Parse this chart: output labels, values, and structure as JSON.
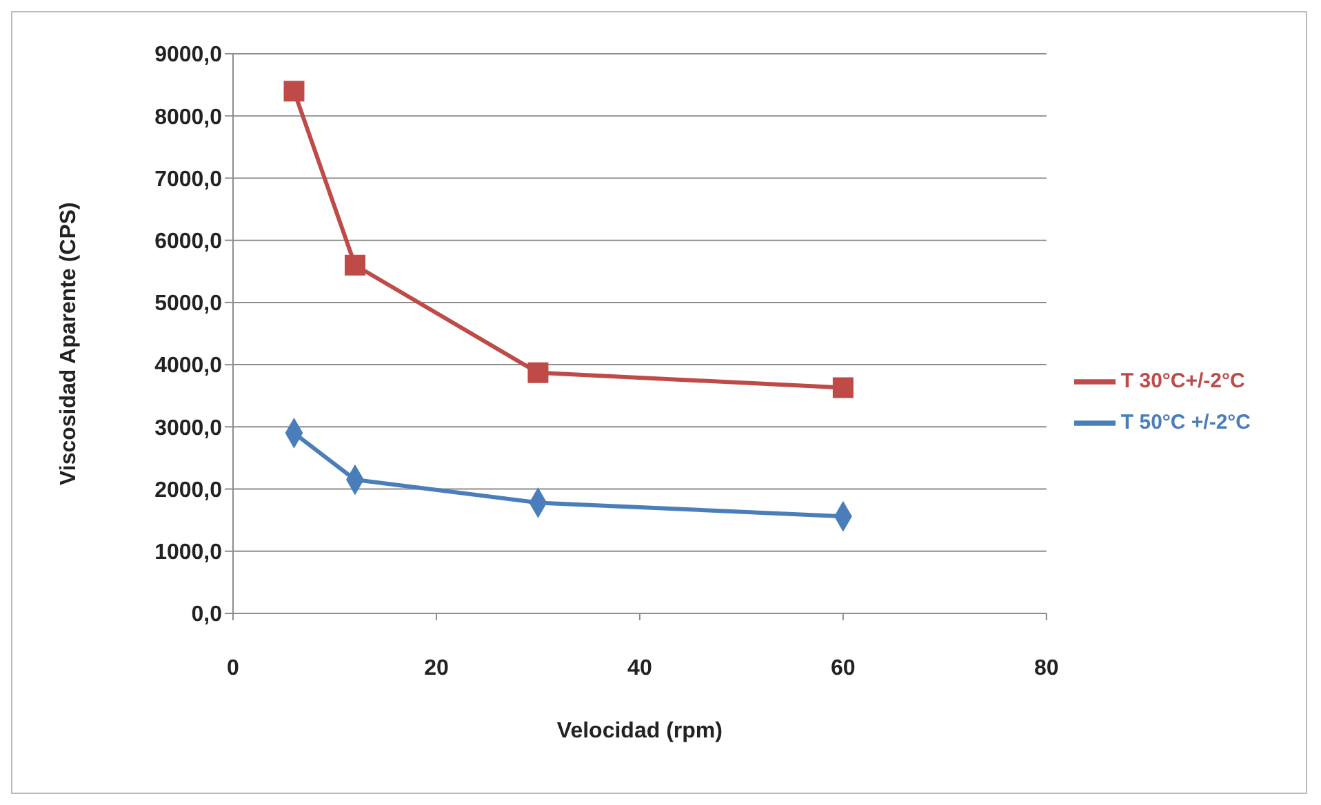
{
  "chart_data": {
    "type": "line",
    "xlabel": "Velocidad (rpm)",
    "ylabel": "Viscosidad Aparente (CPS)",
    "series": [
      {
        "name": "T 50°C +/-2°C",
        "color": "#4a7ebb",
        "x": [
          6,
          12,
          30,
          60
        ],
        "values": [
          2900,
          2150,
          1780,
          1560
        ],
        "marker": "diamond"
      },
      {
        "name": "T 30°C+/-2°C",
        "color": "#be4b48",
        "x": [
          6,
          12,
          30,
          60
        ],
        "values": [
          8400,
          5600,
          3870,
          3630
        ],
        "marker": "square"
      }
    ],
    "xlim": [
      0,
      80
    ],
    "xticks": [
      0,
      20,
      40,
      60,
      80
    ],
    "ylim": [
      0,
      9000
    ],
    "yticks": [
      {
        "value": 0,
        "label": "0,0"
      },
      {
        "value": 1000,
        "label": "1000,0"
      },
      {
        "value": 2000,
        "label": "2000,0"
      },
      {
        "value": 3000,
        "label": "3000,0"
      },
      {
        "value": 4000,
        "label": "4000,0"
      },
      {
        "value": 5000,
        "label": "5000,0"
      },
      {
        "value": 6000,
        "label": "6000,0"
      },
      {
        "value": 7000,
        "label": "7000,0"
      },
      {
        "value": 8000,
        "label": "8000,0"
      },
      {
        "value": 9000,
        "label": "9000,0"
      }
    ],
    "grid": "y",
    "legend": "right",
    "line_style": "solid"
  }
}
